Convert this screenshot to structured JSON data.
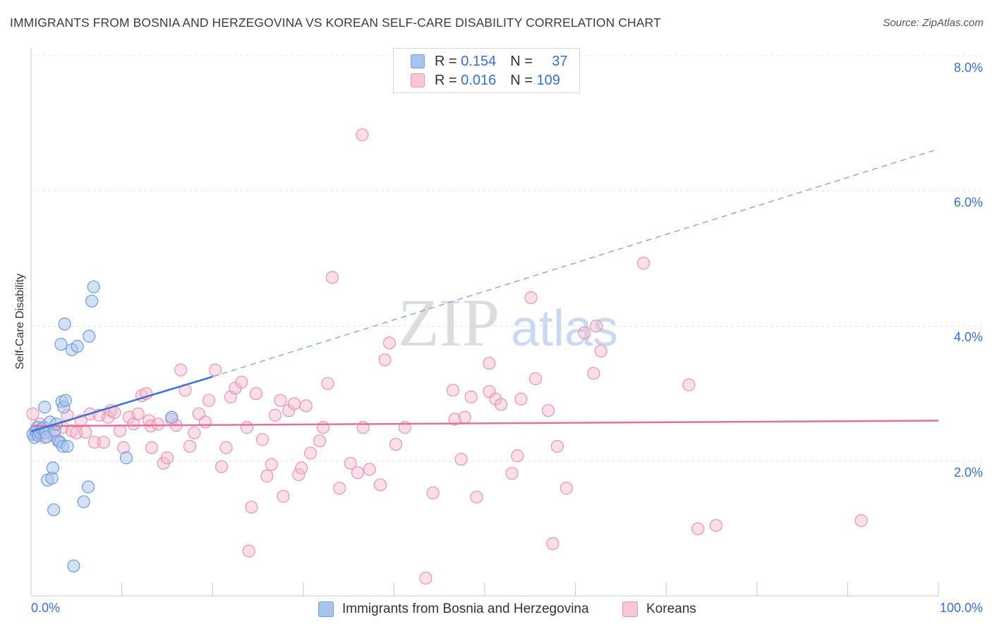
{
  "header": {
    "title": "IMMIGRANTS FROM BOSNIA AND HERZEGOVINA VS KOREAN SELF-CARE DISABILITY CORRELATION CHART",
    "source": "Source: ZipAtlas.com"
  },
  "legend": {
    "rows": [
      {
        "r_label": "R =",
        "r_value": "0.154",
        "n_label": "N =",
        "n_value": "37"
      },
      {
        "r_label": "R =",
        "r_value": "0.016",
        "n_label": "N =",
        "n_value": "109"
      }
    ]
  },
  "bottom_legend": {
    "series1": "Immigrants from Bosnia and Herzegovina",
    "series2": "Koreans"
  },
  "watermark": {
    "zip": "ZIP",
    "atlas": "atlas"
  },
  "colors": {
    "blue_fill": "#a9c4ec",
    "blue_stroke": "#6f9be0",
    "blue_line": "#3a72d0",
    "pink_fill": "#f4b8cc",
    "pink_stroke": "#e894b0",
    "pink_line": "#e2709a",
    "axis_text": "#3b6fc4",
    "grid": "#e3e3e3"
  },
  "chart_data": {
    "type": "scatter",
    "title": "IMMIGRANTS FROM BOSNIA AND HERZEGOVINA VS KOREAN SELF-CARE DISABILITY CORRELATION CHART",
    "xlabel": "",
    "ylabel": "Self-Care Disability",
    "xlim": [
      0,
      100
    ],
    "ylim": [
      0,
      8.3
    ],
    "x_tick_labels": [
      "0.0%",
      "100.0%"
    ],
    "y_ticks": [
      2.0,
      4.0,
      6.0,
      8.0
    ],
    "y_tick_labels": [
      "2.0%",
      "4.0%",
      "6.0%",
      "8.0%"
    ],
    "grid": true,
    "series": [
      {
        "name": "Immigrants from Bosnia and Herzegovina",
        "R": 0.154,
        "N": 37,
        "points": [
          [
            0.2,
            2.4
          ],
          [
            0.4,
            2.35
          ],
          [
            0.5,
            2.45
          ],
          [
            0.7,
            2.5
          ],
          [
            0.8,
            2.38
          ],
          [
            1.0,
            2.42
          ],
          [
            1.2,
            2.48
          ],
          [
            1.4,
            2.5
          ],
          [
            1.5,
            2.8
          ],
          [
            1.6,
            2.42
          ],
          [
            1.7,
            2.36
          ],
          [
            1.8,
            1.72
          ],
          [
            2.1,
            2.58
          ],
          [
            2.3,
            1.75
          ],
          [
            2.4,
            1.9
          ],
          [
            2.5,
            1.28
          ],
          [
            2.6,
            2.45
          ],
          [
            2.8,
            2.55
          ],
          [
            3.0,
            2.3
          ],
          [
            3.2,
            2.28
          ],
          [
            3.3,
            3.73
          ],
          [
            3.4,
            2.88
          ],
          [
            3.5,
            2.22
          ],
          [
            3.6,
            2.8
          ],
          [
            3.7,
            4.03
          ],
          [
            3.8,
            2.9
          ],
          [
            4.0,
            2.22
          ],
          [
            4.5,
            3.65
          ],
          [
            4.7,
            0.45
          ],
          [
            5.1,
            3.7
          ],
          [
            5.8,
            1.4
          ],
          [
            6.3,
            1.62
          ],
          [
            6.4,
            3.85
          ],
          [
            6.7,
            4.37
          ],
          [
            6.9,
            4.58
          ],
          [
            10.5,
            2.05
          ],
          [
            15.5,
            2.65
          ]
        ],
        "trend_solid": {
          "x": [
            0,
            20
          ],
          "y": [
            2.44,
            3.25
          ]
        },
        "trend_dashed": {
          "x": [
            20,
            100
          ],
          "y": [
            3.25,
            6.62
          ]
        }
      },
      {
        "name": "Koreans",
        "R": 0.016,
        "N": 109,
        "points": [
          [
            0.2,
            2.7
          ],
          [
            0.6,
            2.4
          ],
          [
            1.0,
            2.55
          ],
          [
            1.5,
            2.35
          ],
          [
            2.0,
            2.45
          ],
          [
            2.5,
            2.38
          ],
          [
            3.0,
            2.3
          ],
          [
            3.5,
            2.5
          ],
          [
            4.0,
            2.68
          ],
          [
            4.5,
            2.45
          ],
          [
            5.0,
            2.42
          ],
          [
            5.5,
            2.6
          ],
          [
            6.0,
            2.43
          ],
          [
            6.5,
            2.7
          ],
          [
            7.0,
            2.28
          ],
          [
            7.5,
            2.68
          ],
          [
            8.0,
            2.28
          ],
          [
            8.5,
            2.65
          ],
          [
            8.8,
            2.75
          ],
          [
            9.2,
            2.72
          ],
          [
            9.8,
            2.45
          ],
          [
            10.2,
            2.2
          ],
          [
            10.8,
            2.65
          ],
          [
            11.3,
            2.55
          ],
          [
            11.8,
            2.7
          ],
          [
            12.2,
            2.97
          ],
          [
            12.7,
            3.0
          ],
          [
            13.0,
            2.6
          ],
          [
            13.2,
            2.52
          ],
          [
            13.3,
            2.2
          ],
          [
            14.0,
            2.55
          ],
          [
            14.6,
            1.97
          ],
          [
            15.0,
            2.05
          ],
          [
            15.5,
            2.62
          ],
          [
            16.0,
            2.53
          ],
          [
            16.5,
            3.35
          ],
          [
            17.0,
            3.05
          ],
          [
            17.5,
            2.22
          ],
          [
            18.0,
            2.42
          ],
          [
            18.5,
            2.7
          ],
          [
            19.2,
            2.58
          ],
          [
            19.6,
            2.9
          ],
          [
            20.3,
            3.35
          ],
          [
            21.0,
            1.92
          ],
          [
            21.5,
            2.2
          ],
          [
            22.0,
            2.95
          ],
          [
            22.5,
            3.08
          ],
          [
            23.2,
            3.17
          ],
          [
            23.8,
            2.5
          ],
          [
            24.0,
            0.67
          ],
          [
            24.3,
            1.32
          ],
          [
            24.8,
            3.0
          ],
          [
            25.5,
            2.32
          ],
          [
            26.0,
            1.78
          ],
          [
            26.5,
            1.95
          ],
          [
            26.9,
            2.68
          ],
          [
            27.5,
            2.9
          ],
          [
            27.8,
            1.48
          ],
          [
            28.4,
            2.75
          ],
          [
            29.0,
            2.85
          ],
          [
            29.5,
            1.8
          ],
          [
            29.8,
            1.9
          ],
          [
            30.3,
            2.82
          ],
          [
            30.8,
            2.12
          ],
          [
            31.8,
            2.3
          ],
          [
            32.2,
            2.5
          ],
          [
            32.7,
            3.15
          ],
          [
            33.2,
            4.72
          ],
          [
            34.0,
            1.6
          ],
          [
            35.2,
            1.97
          ],
          [
            36.0,
            1.83
          ],
          [
            36.6,
            2.5
          ],
          [
            37.3,
            1.88
          ],
          [
            38.5,
            1.65
          ],
          [
            39.0,
            3.5
          ],
          [
            39.5,
            3.75
          ],
          [
            40.2,
            2.25
          ],
          [
            41.2,
            2.5
          ],
          [
            43.5,
            0.27
          ],
          [
            44.3,
            1.53
          ],
          [
            46.5,
            3.05
          ],
          [
            46.7,
            2.62
          ],
          [
            47.4,
            2.03
          ],
          [
            47.8,
            2.65
          ],
          [
            48.5,
            2.95
          ],
          [
            49.1,
            1.47
          ],
          [
            50.5,
            3.03
          ],
          [
            50.5,
            3.45
          ],
          [
            51.2,
            2.92
          ],
          [
            51.8,
            2.84
          ],
          [
            53.0,
            1.82
          ],
          [
            53.6,
            2.08
          ],
          [
            54.0,
            2.92
          ],
          [
            55.1,
            4.42
          ],
          [
            55.6,
            3.22
          ],
          [
            57.0,
            2.75
          ],
          [
            57.5,
            0.78
          ],
          [
            58.0,
            2.22
          ],
          [
            59.0,
            1.6
          ],
          [
            61.0,
            3.9
          ],
          [
            62.0,
            3.3
          ],
          [
            62.3,
            4.0
          ],
          [
            62.8,
            3.63
          ],
          [
            67.5,
            4.93
          ],
          [
            72.5,
            3.13
          ],
          [
            73.5,
            1.0
          ],
          [
            75.5,
            1.05
          ],
          [
            91.5,
            1.12
          ],
          [
            36.5,
            6.83
          ]
        ],
        "trend": {
          "x": [
            0,
            100
          ],
          "y": [
            2.52,
            2.6
          ]
        }
      }
    ]
  }
}
